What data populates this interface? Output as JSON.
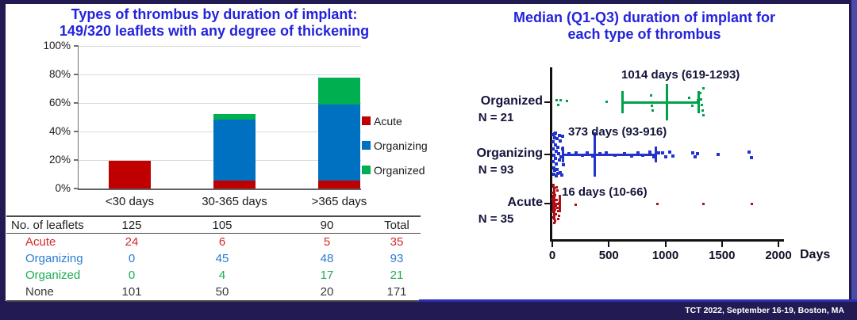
{
  "slide": {
    "footer_text": "TCT 2022, September 16-19, Boston, MA"
  },
  "colors": {
    "background_navy": "#221A52",
    "title_blue": "#2323DC",
    "acute_red": "#C00000",
    "organizing_blue": "#0070C0",
    "organized_green": "#00B050",
    "dot_blue": "#2233CC",
    "dot_red": "#B01015",
    "dot_green": "#00A14B",
    "dark_text": "#14143C",
    "gridline_gray": "#D9D9D9"
  },
  "left_chart": {
    "title_line1": "Types of thrombus by duration of implant:",
    "title_line2": "149/320 leaflets with any degree of thickening"
  },
  "right_chart": {
    "title_line1": "Median (Q1-Q3) duration of implant for",
    "title_line2": "each type of thrombus"
  },
  "chart_data": [
    {
      "type": "bar",
      "stacked": true,
      "title": "Types of thrombus by duration of implant: 149/320 leaflets with any degree of thickening",
      "categories": [
        "<30 days",
        "30-365 days",
        ">365 days"
      ],
      "totals": [
        125,
        105,
        90
      ],
      "series": [
        {
          "name": "Acute",
          "color": "#C00000",
          "counts": [
            24,
            6,
            5
          ]
        },
        {
          "name": "Organizing",
          "color": "#0070C0",
          "counts": [
            0,
            45,
            48
          ]
        },
        {
          "name": "Organized",
          "color": "#00B050",
          "counts": [
            0,
            4,
            17
          ]
        }
      ],
      "values_pct_by_series": [
        [
          19.2,
          5.7,
          5.6
        ],
        [
          0,
          42.9,
          53.3
        ],
        [
          0,
          3.8,
          18.9
        ]
      ],
      "xlabel": "",
      "ylabel": "",
      "ylim": [
        0,
        100
      ],
      "y_ticks": [
        "0%",
        "20%",
        "40%",
        "60%",
        "80%",
        "100%"
      ],
      "grid": true,
      "legend_position": "right"
    },
    {
      "type": "scatter",
      "title": "Median (Q1-Q3) duration of implant for each type of thrombus",
      "xlabel": "Days",
      "xlim": [
        0,
        2000
      ],
      "x_ticks": [
        0,
        500,
        1000,
        1500,
        2000
      ],
      "groups": [
        {
          "label": "Organized",
          "n_label": "N = 21",
          "n": 21,
          "median": 1014,
          "q1": 619,
          "q3": 1293,
          "annotation": "1014 days (619-1293)",
          "color": "#00A14B",
          "points": [
            [
              40,
              -3
            ],
            [
              52,
              3
            ],
            [
              75,
              -3
            ],
            [
              128,
              -2
            ],
            [
              480,
              -1
            ],
            [
              872,
              -9
            ],
            [
              880,
              4
            ],
            [
              886,
              10
            ],
            [
              1212,
              -6
            ],
            [
              1238,
              4
            ],
            [
              1288,
              -3
            ],
            [
              1310,
              -12
            ],
            [
              1316,
              -4
            ],
            [
              1322,
              3
            ],
            [
              1328,
              10
            ],
            [
              1334,
              16
            ],
            [
              1340,
              -18
            ]
          ]
        },
        {
          "label": "Organizing",
          "n_label": "N = 93",
          "n": 93,
          "median": 373,
          "q1": 93,
          "q3": 916,
          "annotation": "373 days (93-916)",
          "color": "#2233CC",
          "points": [
            [
              6,
              -16
            ],
            [
              10,
              -7
            ],
            [
              14,
              1
            ],
            [
              8,
              9
            ],
            [
              16,
              17
            ],
            [
              22,
              -21
            ],
            [
              28,
              -12
            ],
            [
              32,
              -4
            ],
            [
              26,
              5
            ],
            [
              38,
              12
            ],
            [
              44,
              19
            ],
            [
              52,
              -9
            ],
            [
              58,
              -1
            ],
            [
              64,
              7
            ],
            [
              72,
              -17
            ],
            [
              78,
              3
            ],
            [
              88,
              -7
            ],
            [
              98,
              13
            ],
            [
              48,
              24
            ],
            [
              18,
              -26
            ],
            [
              68,
              23
            ],
            [
              94,
              -23
            ],
            [
              34,
              27
            ],
            [
              4,
              -25
            ],
            [
              84,
              26
            ],
            [
              12,
              25
            ],
            [
              30,
              -27
            ],
            [
              60,
              -24
            ],
            [
              42,
              -20
            ],
            [
              20,
              20
            ],
            [
              150,
              -1
            ],
            [
              210,
              -2
            ],
            [
              268,
              1
            ],
            [
              310,
              -2
            ],
            [
              358,
              2
            ],
            [
              420,
              -1
            ],
            [
              478,
              -2
            ],
            [
              556,
              1
            ],
            [
              640,
              -1
            ],
            [
              700,
              2
            ],
            [
              760,
              -2
            ],
            [
              800,
              1
            ],
            [
              860,
              -3
            ],
            [
              900,
              3
            ],
            [
              940,
              -2
            ],
            [
              975,
              -2
            ],
            [
              1005,
              3
            ],
            [
              1040,
              -3
            ],
            [
              1065,
              2
            ],
            [
              1240,
              -2
            ],
            [
              1262,
              3
            ],
            [
              1286,
              -1
            ],
            [
              1468,
              0
            ],
            [
              1742,
              -3
            ],
            [
              1762,
              4
            ]
          ]
        },
        {
          "label": "Acute",
          "n_label": "N = 35",
          "n": 35,
          "median": 16,
          "q1": 10,
          "q3": 66,
          "annotation": "16 days (10-66)",
          "color": "#B01015",
          "points": [
            [
              4,
              -14
            ],
            [
              7,
              -6
            ],
            [
              10,
              2
            ],
            [
              6,
              10
            ],
            [
              13,
              17
            ],
            [
              16,
              -19
            ],
            [
              19,
              -3
            ],
            [
              22,
              7
            ],
            [
              26,
              -11
            ],
            [
              30,
              3
            ],
            [
              34,
              13
            ],
            [
              38,
              -5
            ],
            [
              43,
              5
            ],
            [
              48,
              -17
            ],
            [
              53,
              9
            ],
            [
              58,
              -1
            ],
            [
              24,
              21
            ],
            [
              12,
              -22
            ],
            [
              28,
              22
            ],
            [
              62,
              15
            ],
            [
              68,
              -9
            ],
            [
              8,
              -24
            ],
            [
              15,
              24
            ],
            [
              36,
              -21
            ],
            [
              50,
              19
            ],
            [
              210,
              1
            ],
            [
              928,
              0
            ],
            [
              1335,
              0
            ],
            [
              1765,
              0
            ]
          ]
        }
      ]
    }
  ],
  "table": {
    "header": [
      "No. of leaflets",
      "125",
      "105",
      "90",
      "Total"
    ],
    "rows": [
      {
        "label": "Acute",
        "values": [
          "24",
          "6",
          "5",
          "35"
        ],
        "color": "#D42A2A"
      },
      {
        "label": "Organizing",
        "values": [
          "0",
          "45",
          "48",
          "93"
        ],
        "color": "#2B7BD4"
      },
      {
        "label": "Organized",
        "values": [
          "0",
          "4",
          "17",
          "21"
        ],
        "color": "#1CAB53"
      },
      {
        "label": "None",
        "values": [
          "101",
          "50",
          "20",
          "171"
        ],
        "color": "#3A3A3A"
      }
    ]
  }
}
